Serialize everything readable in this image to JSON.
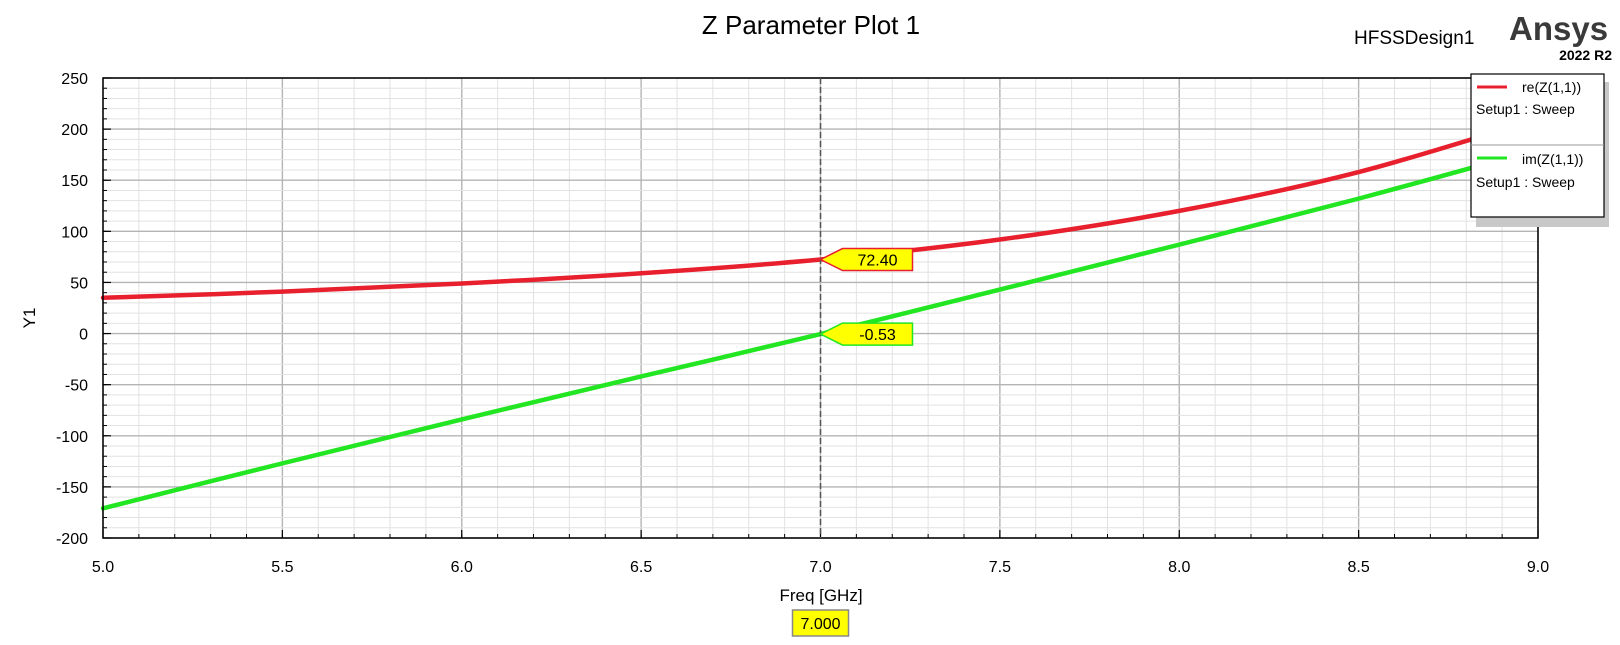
{
  "header": {
    "design_name": "HFSSDesign1",
    "brand": "Ansys",
    "version": "2022 R2"
  },
  "chart_data": {
    "type": "line",
    "title": "Z Parameter Plot 1",
    "xlabel": "Freq [GHz]",
    "ylabel": "Y1",
    "xlim": [
      5.0,
      9.0
    ],
    "ylim": [
      -200,
      250
    ],
    "x_ticks": [
      "5.0",
      "5.5",
      "6.0",
      "6.5",
      "7.0",
      "7.5",
      "8.0",
      "8.5",
      "9.0"
    ],
    "y_ticks": [
      "250",
      "200",
      "150",
      "100",
      "50",
      "0",
      "-50",
      "-100",
      "-150",
      "-200"
    ],
    "grid": true,
    "legend_position": "top-right",
    "series": [
      {
        "name": "re(Z(1,1))",
        "setup": "Setup1 : Sweep",
        "color": "#e8202e",
        "x": [
          5.0,
          5.5,
          6.0,
          6.5,
          7.0,
          7.5,
          8.0,
          8.5,
          9.0
        ],
        "y": [
          35,
          41,
          49,
          59,
          72.4,
          92,
          120,
          158,
          210
        ]
      },
      {
        "name": "im(Z(1,1))",
        "setup": "Setup1 : Sweep",
        "color": "#22e622",
        "x": [
          5.0,
          5.5,
          6.0,
          6.5,
          7.0,
          7.5,
          8.0,
          8.5,
          9.0
        ],
        "y": [
          -171,
          -127,
          -84,
          -42,
          -0.53,
          43,
          87,
          132,
          180
        ]
      }
    ],
    "marker": {
      "x": 7.0,
      "x_label": "7.000",
      "readouts": [
        {
          "series": 0,
          "y": 72.4,
          "label": "72.40",
          "fill": "#ffff00",
          "border": "#e8202e"
        },
        {
          "series": 1,
          "y": -0.53,
          "label": "-0.53",
          "fill": "#ffff00",
          "border": "#22e622"
        }
      ]
    }
  }
}
